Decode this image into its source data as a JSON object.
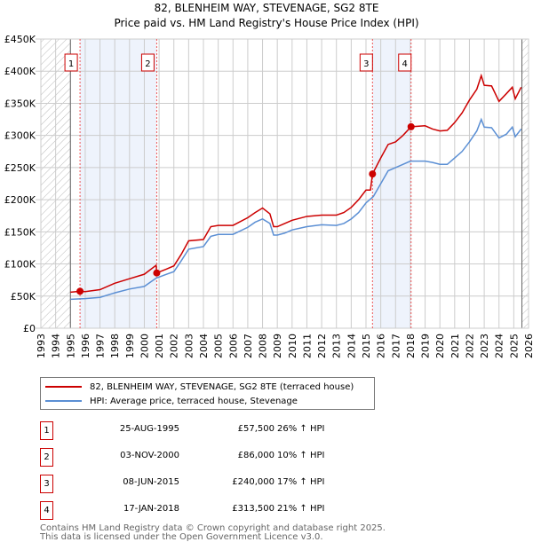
{
  "chart_data": {
    "type": "line",
    "title": "82, BLENHEIM WAY, STEVENAGE, SG2 8TE",
    "subtitle": "Price paid vs. HM Land Registry's House Price Index (HPI)",
    "xlim": [
      1993,
      2026
    ],
    "ylim": [
      0,
      450000
    ],
    "x_ticks": [
      "1993",
      "1994",
      "1995",
      "1996",
      "1997",
      "1998",
      "1999",
      "2000",
      "2001",
      "2002",
      "2003",
      "2004",
      "2005",
      "2006",
      "2007",
      "2008",
      "2009",
      "2010",
      "2011",
      "2012",
      "2013",
      "2014",
      "2015",
      "2016",
      "2017",
      "2018",
      "2019",
      "2020",
      "2021",
      "2022",
      "2023",
      "2024",
      "2025",
      "2026"
    ],
    "y_ticks": [
      {
        "v": 0,
        "l": "£0"
      },
      {
        "v": 50000,
        "l": "£50K"
      },
      {
        "v": 100000,
        "l": "£100K"
      },
      {
        "v": 150000,
        "l": "£150K"
      },
      {
        "v": 200000,
        "l": "£200K"
      },
      {
        "v": 250000,
        "l": "£250K"
      },
      {
        "v": 300000,
        "l": "£300K"
      },
      {
        "v": 350000,
        "l": "£350K"
      },
      {
        "v": 400000,
        "l": "£400K"
      },
      {
        "v": 450000,
        "l": "£450K"
      }
    ],
    "grid": true,
    "hatched_ranges": [
      [
        1993,
        1995
      ],
      [
        2025.55,
        2026
      ]
    ],
    "shaded_ranges": [
      [
        1995.65,
        2000.84
      ],
      [
        2015.44,
        2018.05
      ]
    ],
    "series": [
      {
        "name": "82, BLENHEIM WAY, STEVENAGE, SG2 8TE (terraced house)",
        "color": "#cc0000",
        "x": [
          1995,
          1995.65,
          1996,
          1997,
          1998,
          1999,
          2000,
          2000.8,
          2000.84,
          2001.5,
          2002,
          2002.5,
          2003,
          2004,
          2004.5,
          2005,
          2006,
          2007,
          2007.5,
          2008,
          2008.5,
          2008.75,
          2009,
          2009.5,
          2010,
          2011,
          2012,
          2013,
          2013.5,
          2014,
          2014.5,
          2015,
          2015.3,
          2015.44,
          2016,
          2016.5,
          2017,
          2017.5,
          2018.05,
          2019,
          2019.5,
          2020,
          2020.5,
          2021,
          2021.5,
          2022,
          2022.5,
          2022.8,
          2023,
          2023.5,
          2024,
          2024.5,
          2024.9,
          2025.1,
          2025.5
        ],
        "values": [
          56000,
          57500,
          57000,
          60000,
          70000,
          77000,
          84000,
          98000,
          86000,
          92000,
          97000,
          115000,
          136000,
          138000,
          158000,
          160000,
          160000,
          172000,
          180000,
          187000,
          178000,
          158000,
          158000,
          163000,
          168000,
          174000,
          176000,
          176000,
          180000,
          188000,
          200000,
          215000,
          215000,
          240000,
          265000,
          286000,
          290000,
          300000,
          313500,
          315000,
          310000,
          307000,
          308000,
          320000,
          335000,
          355000,
          372000,
          393000,
          378000,
          377000,
          353000,
          365000,
          375000,
          357000,
          375000
        ]
      },
      {
        "name": "HPI: Average price, terraced house, Stevenage",
        "color": "#5b8fd4",
        "x": [
          1995,
          1996,
          1997,
          1998,
          1999,
          2000,
          2000.8,
          2001.5,
          2002,
          2002.5,
          2003,
          2004,
          2004.5,
          2005,
          2006,
          2007,
          2007.5,
          2008,
          2008.5,
          2008.75,
          2009,
          2009.5,
          2010,
          2011,
          2012,
          2013,
          2013.5,
          2014,
          2014.5,
          2015,
          2015.5,
          2016,
          2016.5,
          2017,
          2017.5,
          2018,
          2019,
          2019.5,
          2020,
          2020.5,
          2021,
          2021.5,
          2022,
          2022.5,
          2022.8,
          2023,
          2023.5,
          2024,
          2024.5,
          2024.9,
          2025.1,
          2025.5
        ],
        "values": [
          45000,
          46000,
          48000,
          55000,
          61000,
          65000,
          78000,
          84000,
          88000,
          105000,
          123000,
          127000,
          143000,
          146000,
          146000,
          157000,
          165000,
          170000,
          163000,
          145000,
          145000,
          148000,
          153000,
          158000,
          161000,
          160000,
          163000,
          170000,
          180000,
          195000,
          205000,
          225000,
          245000,
          250000,
          255000,
          260000,
          260000,
          258000,
          255000,
          255000,
          265000,
          275000,
          290000,
          307000,
          325000,
          313000,
          312000,
          296000,
          302000,
          313000,
          298000,
          310000
        ]
      }
    ],
    "sales": [
      {
        "n": "1",
        "date": "25-AUG-1995",
        "price": "£57,500",
        "hpi": "26% ↑ HPI",
        "x": 1995.65,
        "v": 57500
      },
      {
        "n": "2",
        "date": "03-NOV-2000",
        "price": "£86,000",
        "hpi": "10% ↑ HPI",
        "x": 2000.84,
        "v": 86000
      },
      {
        "n": "3",
        "date": "08-JUN-2015",
        "price": "£240,000",
        "hpi": "17% ↑ HPI",
        "x": 2015.44,
        "v": 240000
      },
      {
        "n": "4",
        "date": "17-JAN-2018",
        "price": "£313,500",
        "hpi": "21% ↑ HPI",
        "x": 2018.05,
        "v": 313500
      }
    ]
  },
  "footer": {
    "line1": "Contains HM Land Registry data © Crown copyright and database right 2025.",
    "line2": "This data is licensed under the Open Government Licence v3.0."
  }
}
